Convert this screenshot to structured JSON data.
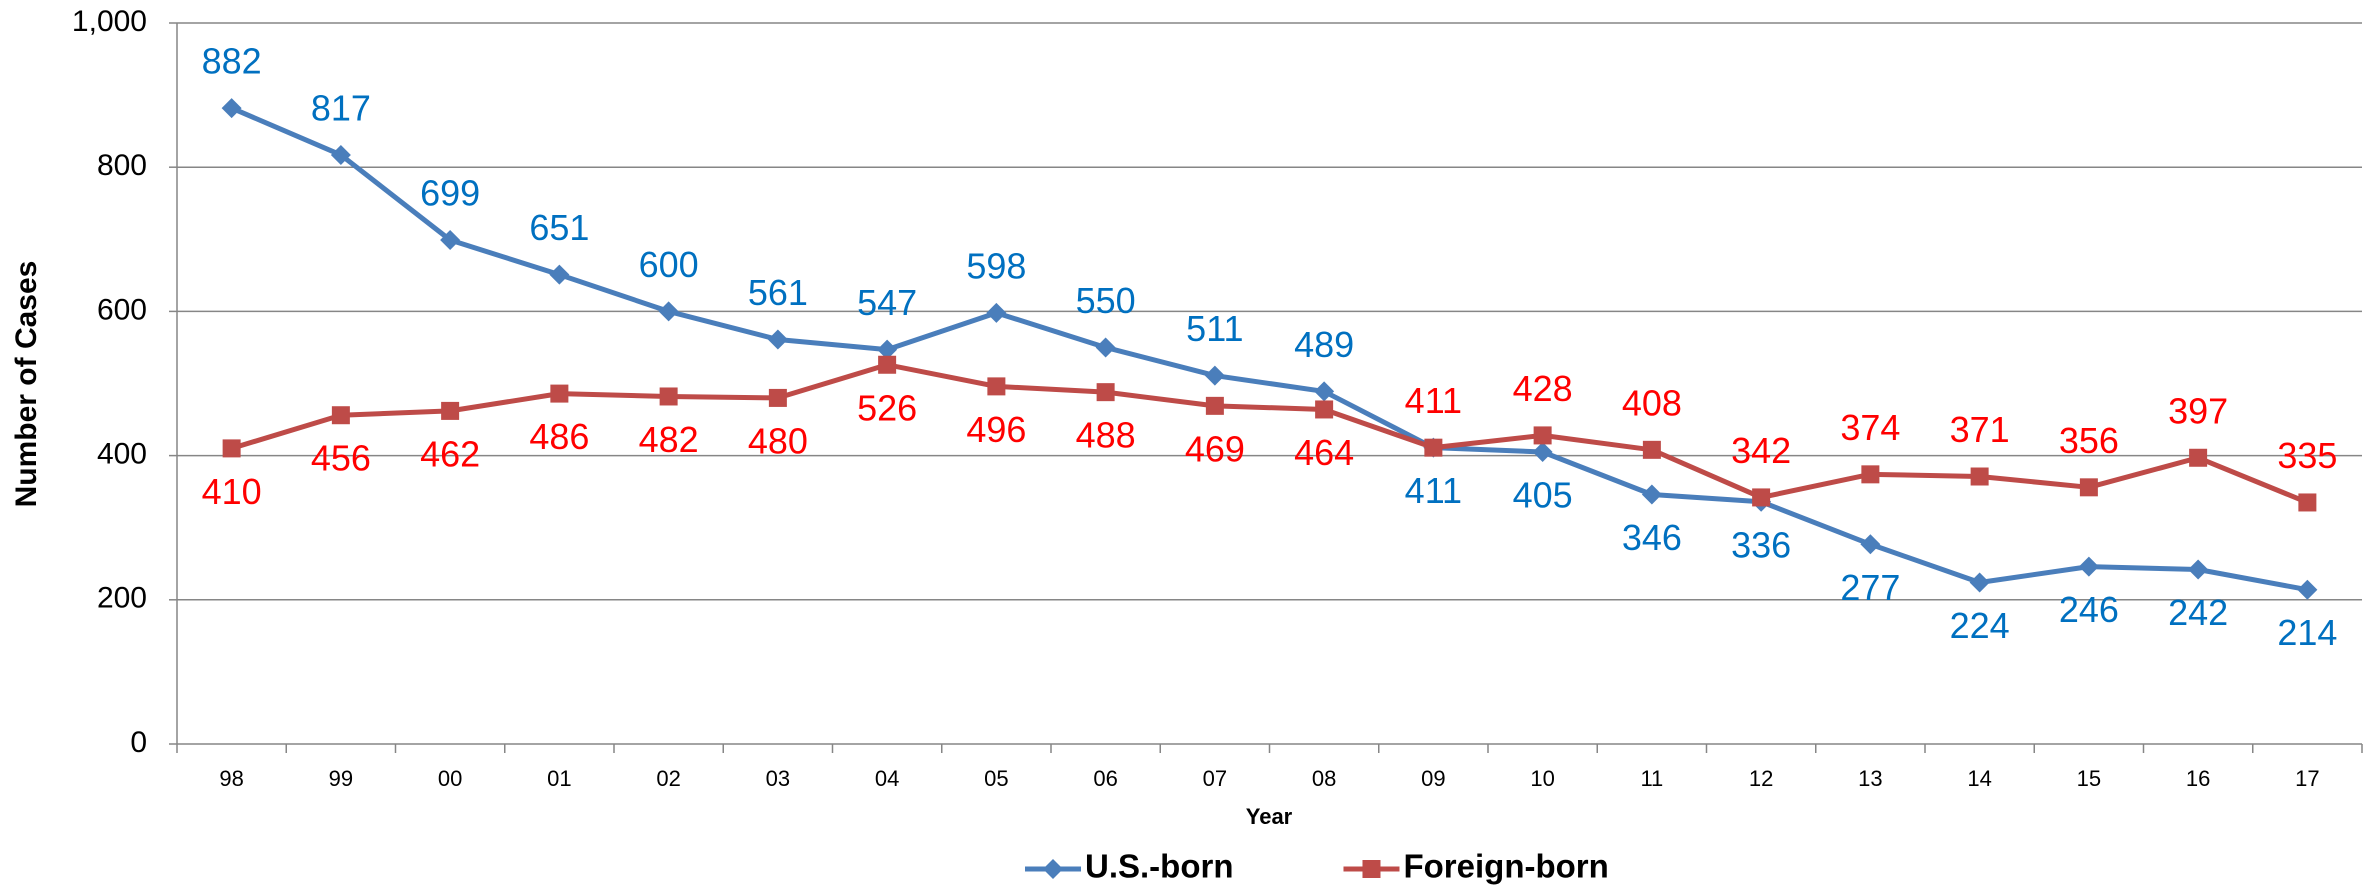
{
  "chart_data": {
    "type": "line",
    "y_label": "Number of Cases",
    "x_label": "Year",
    "categories": [
      "98",
      "99",
      "00",
      "01",
      "02",
      "03",
      "04",
      "05",
      "06",
      "07",
      "08",
      "09",
      "10",
      "11",
      "12",
      "13",
      "14",
      "15",
      "16",
      "17"
    ],
    "series": [
      {
        "name": "U.S.-born",
        "color": "#4a7ebb",
        "label_color": "#0070c0",
        "marker": "diamond",
        "values": [
          882,
          817,
          699,
          651,
          600,
          561,
          547,
          598,
          550,
          511,
          489,
          411,
          405,
          346,
          336,
          277,
          224,
          246,
          242,
          214
        ]
      },
      {
        "name": "Foreign-born",
        "color": "#be4b48",
        "label_color": "#ff0000",
        "marker": "square",
        "values": [
          410,
          456,
          462,
          486,
          482,
          480,
          526,
          496,
          488,
          469,
          464,
          411,
          428,
          408,
          342,
          374,
          371,
          356,
          397,
          335
        ]
      }
    ],
    "ylim": [
      0,
      1000
    ],
    "yticks": [
      0,
      200,
      400,
      600,
      800,
      {
        "value": 1000,
        "label": "1,000"
      }
    ],
    "grid": true,
    "legend": "bottom"
  }
}
